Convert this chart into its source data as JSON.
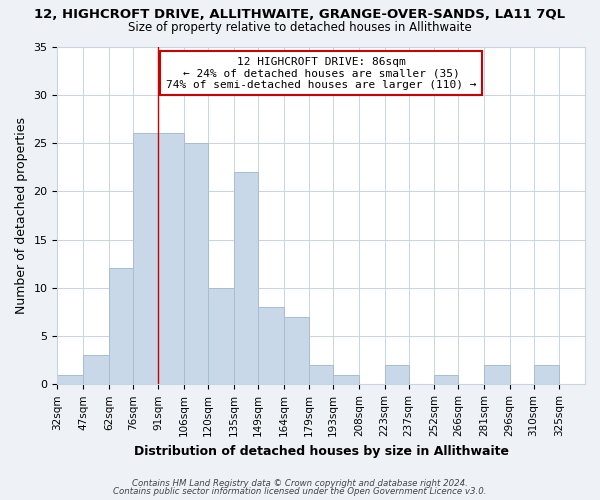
{
  "title": "12, HIGHCROFT DRIVE, ALLITHWAITE, GRANGE-OVER-SANDS, LA11 7QL",
  "subtitle": "Size of property relative to detached houses in Allithwaite",
  "xlabel": "Distribution of detached houses by size in Allithwaite",
  "ylabel": "Number of detached properties",
  "bar_color": "#c8d8e8",
  "bar_edge_color": "#a8bece",
  "bin_labels": [
    "32sqm",
    "47sqm",
    "62sqm",
    "76sqm",
    "91sqm",
    "106sqm",
    "120sqm",
    "135sqm",
    "149sqm",
    "164sqm",
    "179sqm",
    "193sqm",
    "208sqm",
    "223sqm",
    "237sqm",
    "252sqm",
    "266sqm",
    "281sqm",
    "296sqm",
    "310sqm",
    "325sqm"
  ],
  "bin_edges": [
    32,
    47,
    62,
    76,
    91,
    106,
    120,
    135,
    149,
    164,
    179,
    193,
    208,
    223,
    237,
    252,
    266,
    281,
    296,
    310,
    325,
    340
  ],
  "counts": [
    1,
    3,
    12,
    26,
    26,
    25,
    10,
    22,
    8,
    7,
    2,
    1,
    0,
    2,
    0,
    1,
    0,
    2,
    0,
    2,
    0
  ],
  "property_bin_edge": 91,
  "vline_color": "#cc0000",
  "annotation_line1": "12 HIGHCROFT DRIVE: 86sqm",
  "annotation_line2": "← 24% of detached houses are smaller (35)",
  "annotation_line3": "74% of semi-detached houses are larger (110) →",
  "annotation_box_color": "#ffffff",
  "annotation_box_edge_color": "#cc0000",
  "ylim": [
    0,
    35
  ],
  "yticks": [
    0,
    5,
    10,
    15,
    20,
    25,
    30,
    35
  ],
  "footer_line1": "Contains HM Land Registry data © Crown copyright and database right 2024.",
  "footer_line2": "Contains public sector information licensed under the Open Government Licence v3.0.",
  "background_color": "#eef2f7",
  "plot_background_color": "#ffffff",
  "grid_color": "#c8d4e0"
}
